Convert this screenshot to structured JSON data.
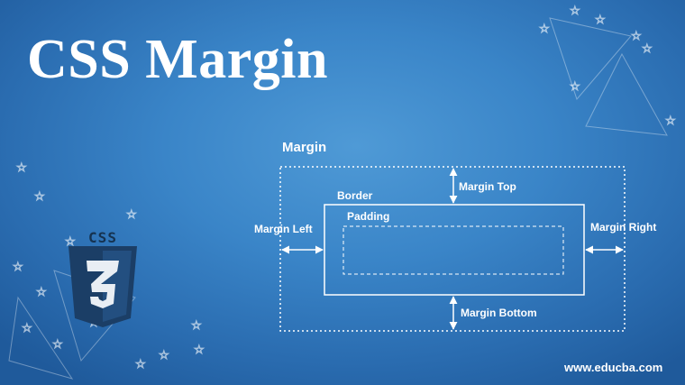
{
  "title": "CSS Margin",
  "diagram": {
    "margin_label": "Margin",
    "border_label": "Border",
    "padding_label": "Padding",
    "margin_top_label": "Margin Top",
    "margin_left_label": "Margin Left",
    "margin_right_label": "Margin Right",
    "margin_bottom_label": "Margin Bottom"
  },
  "logo": {
    "text": "CSS",
    "numeral": "3",
    "icon": "css3-shield-icon",
    "color_dark": "#1b3e66",
    "color_light": "#e9eef4"
  },
  "website": "www.educba.com",
  "colors": {
    "background": "#3a85c8",
    "lines": "#ffffff"
  }
}
